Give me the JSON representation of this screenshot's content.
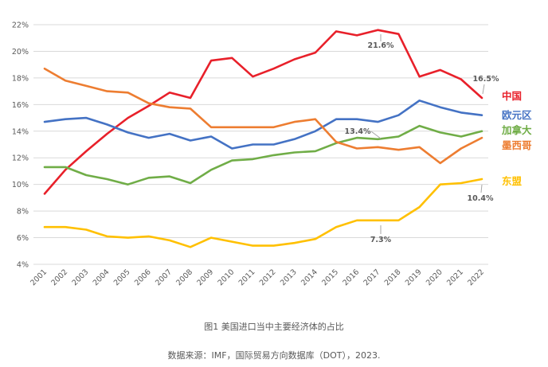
{
  "chart_data": {
    "type": "line",
    "title": "",
    "xlabel": "",
    "ylabel": "",
    "x": [
      "2001",
      "2002",
      "2003",
      "2004",
      "2005",
      "2006",
      "2007",
      "2008",
      "2009",
      "2010",
      "2011",
      "2012",
      "2013",
      "2014",
      "2015",
      "2016",
      "2017",
      "2018",
      "2019",
      "2020",
      "2021",
      "2022"
    ],
    "ylim": [
      4,
      22
    ],
    "yticks": [
      "4%",
      "6%",
      "8%",
      "10%",
      "12%",
      "14%",
      "16%",
      "18%",
      "20%",
      "22%"
    ],
    "grid": true,
    "legend_placement": "right",
    "series": [
      {
        "name": "中国",
        "color": "#e8202a",
        "values": [
          9.3,
          11.1,
          12.5,
          13.8,
          15.0,
          15.9,
          16.9,
          16.5,
          19.3,
          19.5,
          18.1,
          18.7,
          19.4,
          19.9,
          21.5,
          21.2,
          21.6,
          21.3,
          18.1,
          18.6,
          17.9,
          16.5
        ]
      },
      {
        "name": "欧元区",
        "color": "#4472c4",
        "values": [
          14.7,
          14.9,
          15.0,
          14.5,
          13.9,
          13.5,
          13.8,
          13.3,
          13.6,
          12.7,
          13.0,
          13.0,
          13.4,
          14.0,
          14.9,
          14.9,
          14.7,
          15.2,
          16.3,
          15.8,
          15.4,
          15.2
        ]
      },
      {
        "name": "加拿大",
        "color": "#70ad47",
        "values": [
          11.3,
          11.3,
          10.7,
          10.4,
          10.0,
          10.5,
          10.6,
          10.1,
          11.1,
          11.8,
          11.9,
          12.2,
          12.4,
          12.5,
          13.1,
          13.5,
          13.4,
          13.6,
          14.4,
          13.9,
          13.6,
          14.0
        ]
      },
      {
        "name": "墨西哥",
        "color": "#ed7d31",
        "values": [
          18.7,
          17.8,
          17.4,
          17.0,
          16.9,
          16.1,
          15.8,
          15.7,
          14.3,
          14.3,
          14.3,
          14.3,
          14.7,
          14.9,
          13.2,
          12.7,
          12.8,
          12.6,
          12.8,
          11.6,
          12.7,
          13.5
        ]
      },
      {
        "name": "东盟",
        "color": "#ffc000",
        "values": [
          6.8,
          6.8,
          6.6,
          6.1,
          6.0,
          6.1,
          5.8,
          5.3,
          6.0,
          5.7,
          5.4,
          5.4,
          5.6,
          5.9,
          6.8,
          7.3,
          7.3,
          7.3,
          8.3,
          10.0,
          10.1,
          10.4
        ]
      }
    ],
    "annotations": [
      {
        "text": "21.6%",
        "series": "中国",
        "x": "2017",
        "value": 21.6
      },
      {
        "text": "16.5%",
        "series": "中国",
        "x": "2022",
        "value": 16.5
      },
      {
        "text": "13.4%",
        "series": "加拿大",
        "x": "2017",
        "value": 13.4
      },
      {
        "text": "7.3%",
        "series": "东盟",
        "x": "2017",
        "value": 7.3
      },
      {
        "text": "10.4%",
        "series": "东盟",
        "x": "2022",
        "value": 10.4
      }
    ]
  },
  "figure_caption": "图1  美国进口当中主要经济体的占比",
  "source_note": "数据来源：IMF，国际贸易方向数据库（DOT），2023."
}
